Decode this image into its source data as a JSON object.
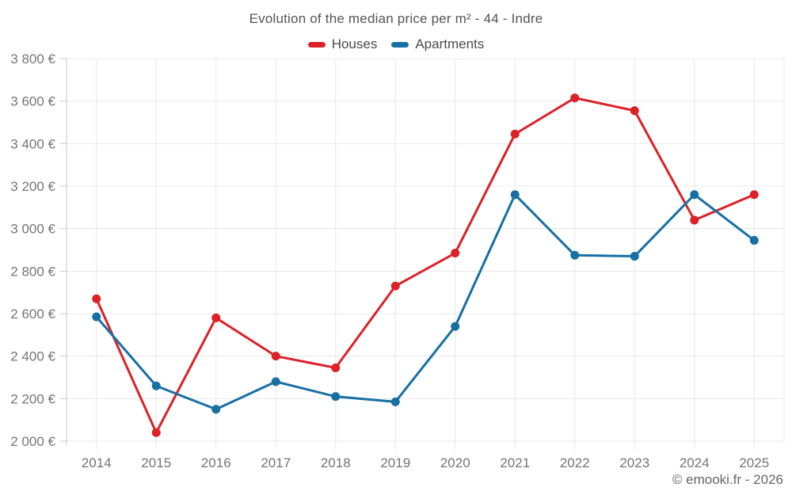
{
  "title": "Evolution of the median price per m² - 44 - Indre",
  "watermark": "© emooki.fr - 2026",
  "colors": {
    "houses": "#dc2127",
    "apartments": "#1770a4",
    "grid": "#e8e8e8",
    "axis": "#c9c9c9",
    "tick_label": "#757575",
    "title_text": "#545454",
    "legend_text": "#4a4a4a",
    "watermark_text": "#666666"
  },
  "chart_data": {
    "type": "line",
    "title": "Evolution of the median price per m² - 44 - Indre",
    "categories": [
      "2014",
      "2015",
      "2016",
      "2017",
      "2018",
      "2019",
      "2020",
      "2021",
      "2022",
      "2023",
      "2024",
      "2025"
    ],
    "series": [
      {
        "name": "Houses",
        "color": "#dc2127",
        "values": [
          2670,
          2040,
          2580,
          2400,
          2345,
          2730,
          2885,
          3445,
          3615,
          3555,
          3040,
          3160
        ]
      },
      {
        "name": "Apartments",
        "color": "#1770a4",
        "values": [
          2585,
          2260,
          2150,
          2280,
          2210,
          2185,
          2540,
          3160,
          2875,
          2870,
          3160,
          2945
        ]
      }
    ],
    "xlabel": "",
    "ylabel": "",
    "ylim": [
      2000,
      3800
    ],
    "ytick_step": 200,
    "ytick_suffix": " €",
    "grid": true,
    "legend_position": "top"
  }
}
